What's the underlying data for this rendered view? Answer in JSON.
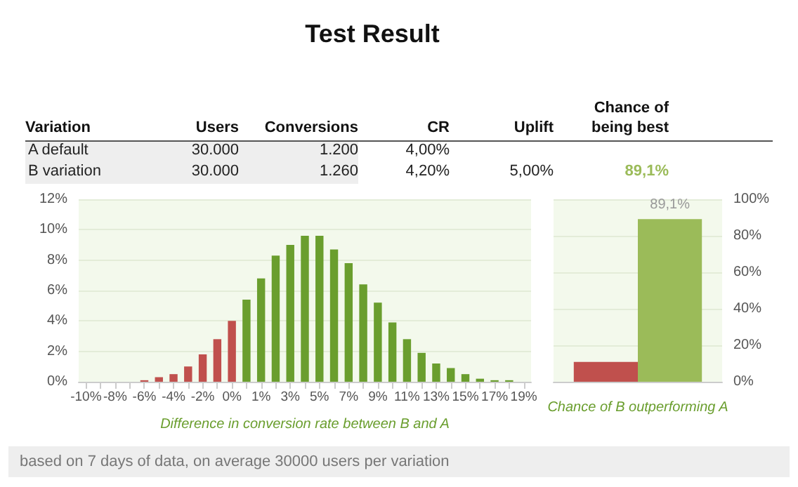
{
  "chart_data": [
    {
      "type": "other",
      "title": "Test Result",
      "categories": [
        "Variation",
        "Users",
        "Conversions",
        "CR",
        "Uplift",
        "Chance of being best"
      ],
      "y_categories": [
        "A default",
        "B variation"
      ],
      "cell_labels": [
        [
          "30.000",
          "1.200",
          "4,00%",
          null,
          null
        ],
        [
          "30.000",
          "1.260",
          "4,20%",
          "5,00%",
          "89,1%"
        ]
      ],
      "annotations": [
        "based on 7 days of data, on average 30000 users per variation"
      ]
    },
    {
      "type": "bar",
      "xlabel": "Difference in conversion rate between B and A",
      "categories": [
        "-10%",
        null,
        "-8%",
        null,
        "-6%",
        null,
        "-4%",
        null,
        "-2%",
        null,
        "0%",
        null,
        "1%",
        null,
        "3%",
        null,
        "5%",
        null,
        "7%",
        null,
        "9%",
        null,
        "11%",
        null,
        "13%",
        null,
        "15%",
        null,
        "17%",
        null,
        "19%"
      ],
      "series": [
        {
          "color": "#c0504d",
          "values": [
            0,
            0,
            0,
            0,
            0.1,
            0.3,
            0.5,
            1.0,
            1.8,
            2.8,
            4.0,
            null,
            null,
            null,
            null,
            null,
            null,
            null,
            null,
            null,
            null,
            null,
            null,
            null,
            null,
            null,
            null,
            null,
            null,
            null,
            null
          ]
        },
        {
          "color": "#6a9e2e",
          "values": [
            null,
            null,
            null,
            null,
            null,
            null,
            null,
            null,
            null,
            null,
            null,
            5.4,
            6.8,
            8.3,
            9.0,
            9.6,
            9.6,
            8.7,
            7.8,
            6.4,
            5.2,
            3.9,
            2.8,
            1.9,
            1.2,
            0.9,
            0.5,
            0.2,
            0.1,
            0.1,
            0
          ]
        }
      ],
      "ylim": [
        0,
        12
      ],
      "yticks": [
        {
          "value": 0,
          "label": "0%"
        },
        {
          "value": 2,
          "label": "2%"
        },
        {
          "value": 4,
          "label": "4%"
        },
        {
          "value": 6,
          "label": "6%"
        },
        {
          "value": 8,
          "label": "8%"
        },
        {
          "value": 10,
          "label": "10%"
        },
        {
          "value": 12,
          "label": "12%"
        }
      ],
      "grid": "y"
    },
    {
      "type": "bar",
      "xlabel": "Chance of B outperforming A",
      "categories": [
        null
      ],
      "series": [
        {
          "color": "#c0504d",
          "values": [
            10.9
          ]
        },
        {
          "color": "#9bbb59",
          "values": [
            89.1
          ],
          "value_labels": [
            "89,1%"
          ]
        }
      ],
      "ylim": [
        0,
        100
      ],
      "yticks": [
        {
          "value": 0,
          "label": "0%"
        },
        {
          "value": 20,
          "label": "20%"
        },
        {
          "value": 40,
          "label": "40%"
        },
        {
          "value": 60,
          "label": "60%"
        },
        {
          "value": 80,
          "label": "80%"
        },
        {
          "value": 100,
          "label": "100%"
        }
      ],
      "grid": "y"
    }
  ]
}
